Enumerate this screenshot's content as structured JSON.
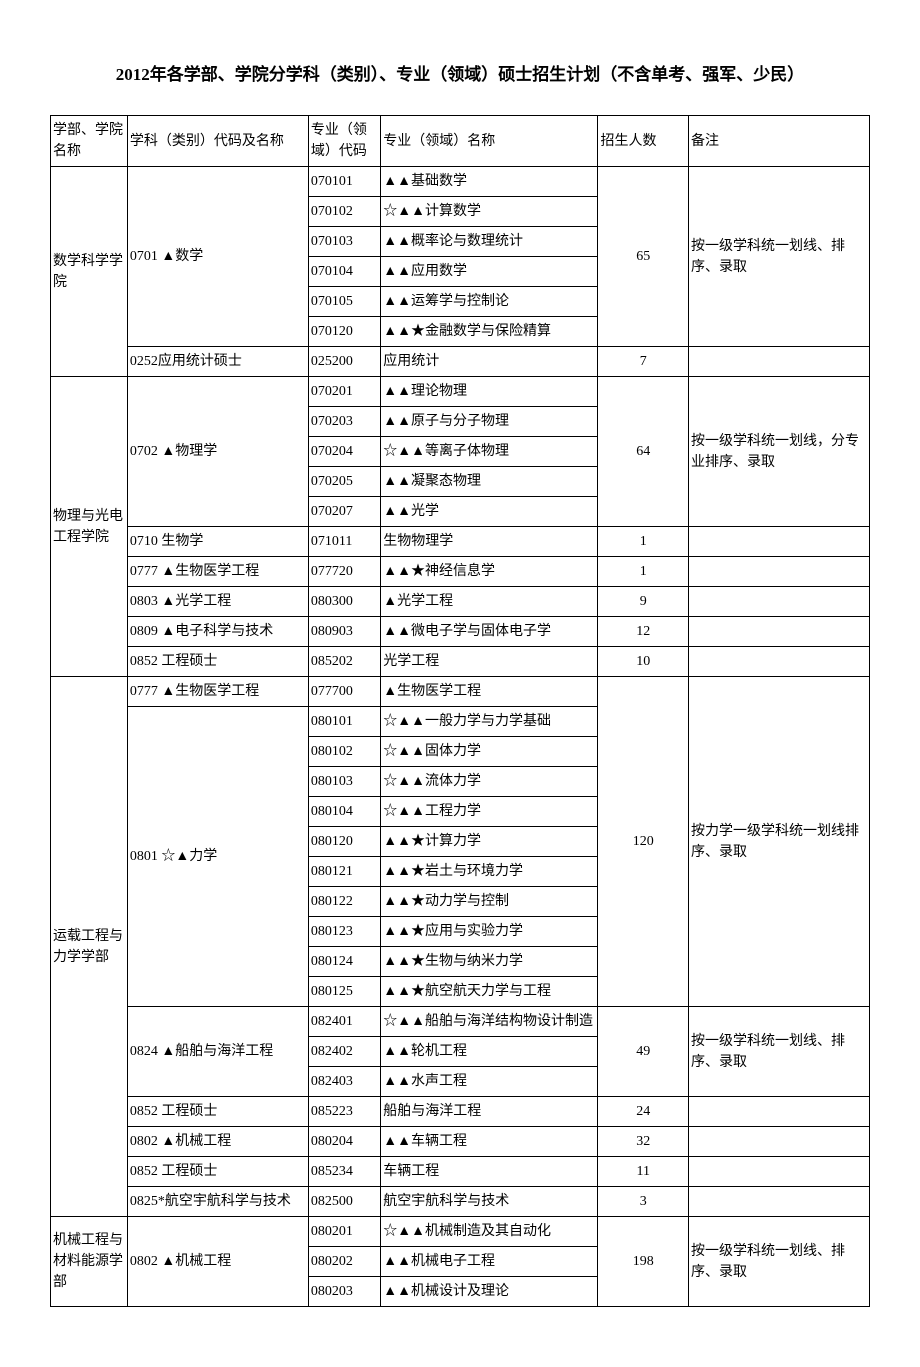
{
  "title": "2012年各学部、学院分学科（类别）、专业（领域）硕士招生计划（不含单考、强军、少民）",
  "headers": {
    "dept": "学部、学院名称",
    "discipline": "学科（类别）代码及名称",
    "code": "专业（领域）代码",
    "major": "专业（领域）名称",
    "count": "招生人数",
    "note": "备注"
  },
  "groups": [
    {
      "dept": "数学科学学院",
      "blocks": [
        {
          "discipline": "0701 ▲数学",
          "count": "65",
          "note": "按一级学科统一划线、排序、录取",
          "rows": [
            {
              "code": "070101",
              "major": "▲▲基础数学"
            },
            {
              "code": "070102",
              "major": "☆▲▲计算数学"
            },
            {
              "code": "070103",
              "major": "▲▲概率论与数理统计"
            },
            {
              "code": "070104",
              "major": "▲▲应用数学"
            },
            {
              "code": "070105",
              "major": "▲▲运筹学与控制论"
            },
            {
              "code": "070120",
              "major": "▲▲★金融数学与保险精算"
            }
          ]
        },
        {
          "discipline": "0252应用统计硕士",
          "count": "7",
          "note": "",
          "rows": [
            {
              "code": "025200",
              "major": "应用统计"
            }
          ]
        }
      ]
    },
    {
      "dept": "物理与光电工程学院",
      "blocks": [
        {
          "discipline": "0702 ▲物理学",
          "count": "64",
          "note": "按一级学科统一划线，分专业排序、录取",
          "rows": [
            {
              "code": "070201",
              "major": "▲▲理论物理"
            },
            {
              "code": "070203",
              "major": "▲▲原子与分子物理"
            },
            {
              "code": "070204",
              "major": "☆▲▲等离子体物理"
            },
            {
              "code": "070205",
              "major": "▲▲凝聚态物理"
            },
            {
              "code": "070207",
              "major": "▲▲光学"
            }
          ]
        },
        {
          "discipline": "0710 生物学",
          "count": "1",
          "note": "",
          "rows": [
            {
              "code": "071011",
              "major": "生物物理学"
            }
          ]
        },
        {
          "discipline": "0777 ▲生物医学工程",
          "count": "1",
          "note": "",
          "rows": [
            {
              "code": "077720",
              "major": "▲▲★神经信息学"
            }
          ]
        },
        {
          "discipline": "0803 ▲光学工程",
          "count": "9",
          "note": "",
          "rows": [
            {
              "code": "080300",
              "major": "▲光学工程"
            }
          ]
        },
        {
          "discipline": "0809 ▲电子科学与技术",
          "count": "12",
          "note": "",
          "rows": [
            {
              "code": "080903",
              "major": "▲▲微电子学与固体电子学"
            }
          ]
        },
        {
          "discipline": "0852 工程硕士",
          "count": "10",
          "note": "",
          "rows": [
            {
              "code": "085202",
              "major": "光学工程"
            }
          ]
        }
      ]
    },
    {
      "dept": "运载工程与力学学部",
      "blocks": [
        {
          "discipline": "0777 ▲生物医学工程",
          "count": "120",
          "note": "按力学一级学科统一划线排序、录取",
          "combineWithNext": true,
          "rows": [
            {
              "code": "077700",
              "major": "▲生物医学工程"
            }
          ]
        },
        {
          "discipline": "0801 ☆▲力学",
          "rows": [
            {
              "code": "080101",
              "major": "☆▲▲一般力学与力学基础"
            },
            {
              "code": "080102",
              "major": "☆▲▲固体力学"
            },
            {
              "code": "080103",
              "major": "☆▲▲流体力学"
            },
            {
              "code": "080104",
              "major": "☆▲▲工程力学"
            },
            {
              "code": "080120",
              "major": "▲▲★计算力学"
            },
            {
              "code": "080121",
              "major": "▲▲★岩土与环境力学"
            },
            {
              "code": "080122",
              "major": "▲▲★动力学与控制"
            },
            {
              "code": "080123",
              "major": "▲▲★应用与实验力学"
            },
            {
              "code": "080124",
              "major": "▲▲★生物与纳米力学"
            },
            {
              "code": "080125",
              "major": "▲▲★航空航天力学与工程"
            }
          ]
        },
        {
          "discipline": "0824 ▲船舶与海洋工程",
          "count": "49",
          "note": "按一级学科统一划线、排序、录取",
          "rows": [
            {
              "code": "082401",
              "major": "☆▲▲船舶与海洋结构物设计制造"
            },
            {
              "code": "082402",
              "major": "▲▲轮机工程"
            },
            {
              "code": "082403",
              "major": "▲▲水声工程"
            }
          ]
        },
        {
          "discipline": "0852 工程硕士",
          "count": "24",
          "note": "",
          "rows": [
            {
              "code": "085223",
              "major": "船舶与海洋工程"
            }
          ]
        },
        {
          "discipline": "0802 ▲机械工程",
          "count": "32",
          "note": "",
          "rows": [
            {
              "code": "080204",
              "major": "▲▲车辆工程"
            }
          ]
        },
        {
          "discipline": "0852 工程硕士",
          "count": "11",
          "note": "",
          "rows": [
            {
              "code": "085234",
              "major": "车辆工程"
            }
          ]
        },
        {
          "discipline": "0825*航空宇航科学与技术",
          "count": "3",
          "note": "",
          "rows": [
            {
              "code": "082500",
              "major": "航空宇航科学与技术"
            }
          ]
        }
      ]
    },
    {
      "dept": "机械工程与材料能源学部",
      "blocks": [
        {
          "discipline": "0802 ▲机械工程",
          "count": "198",
          "note": "按一级学科统一划线、排序、录取",
          "rows": [
            {
              "code": "080201",
              "major": "☆▲▲机械制造及其自动化"
            },
            {
              "code": "080202",
              "major": "▲▲机械电子工程"
            },
            {
              "code": "080203",
              "major": "▲▲机械设计及理论"
            }
          ]
        }
      ]
    }
  ]
}
